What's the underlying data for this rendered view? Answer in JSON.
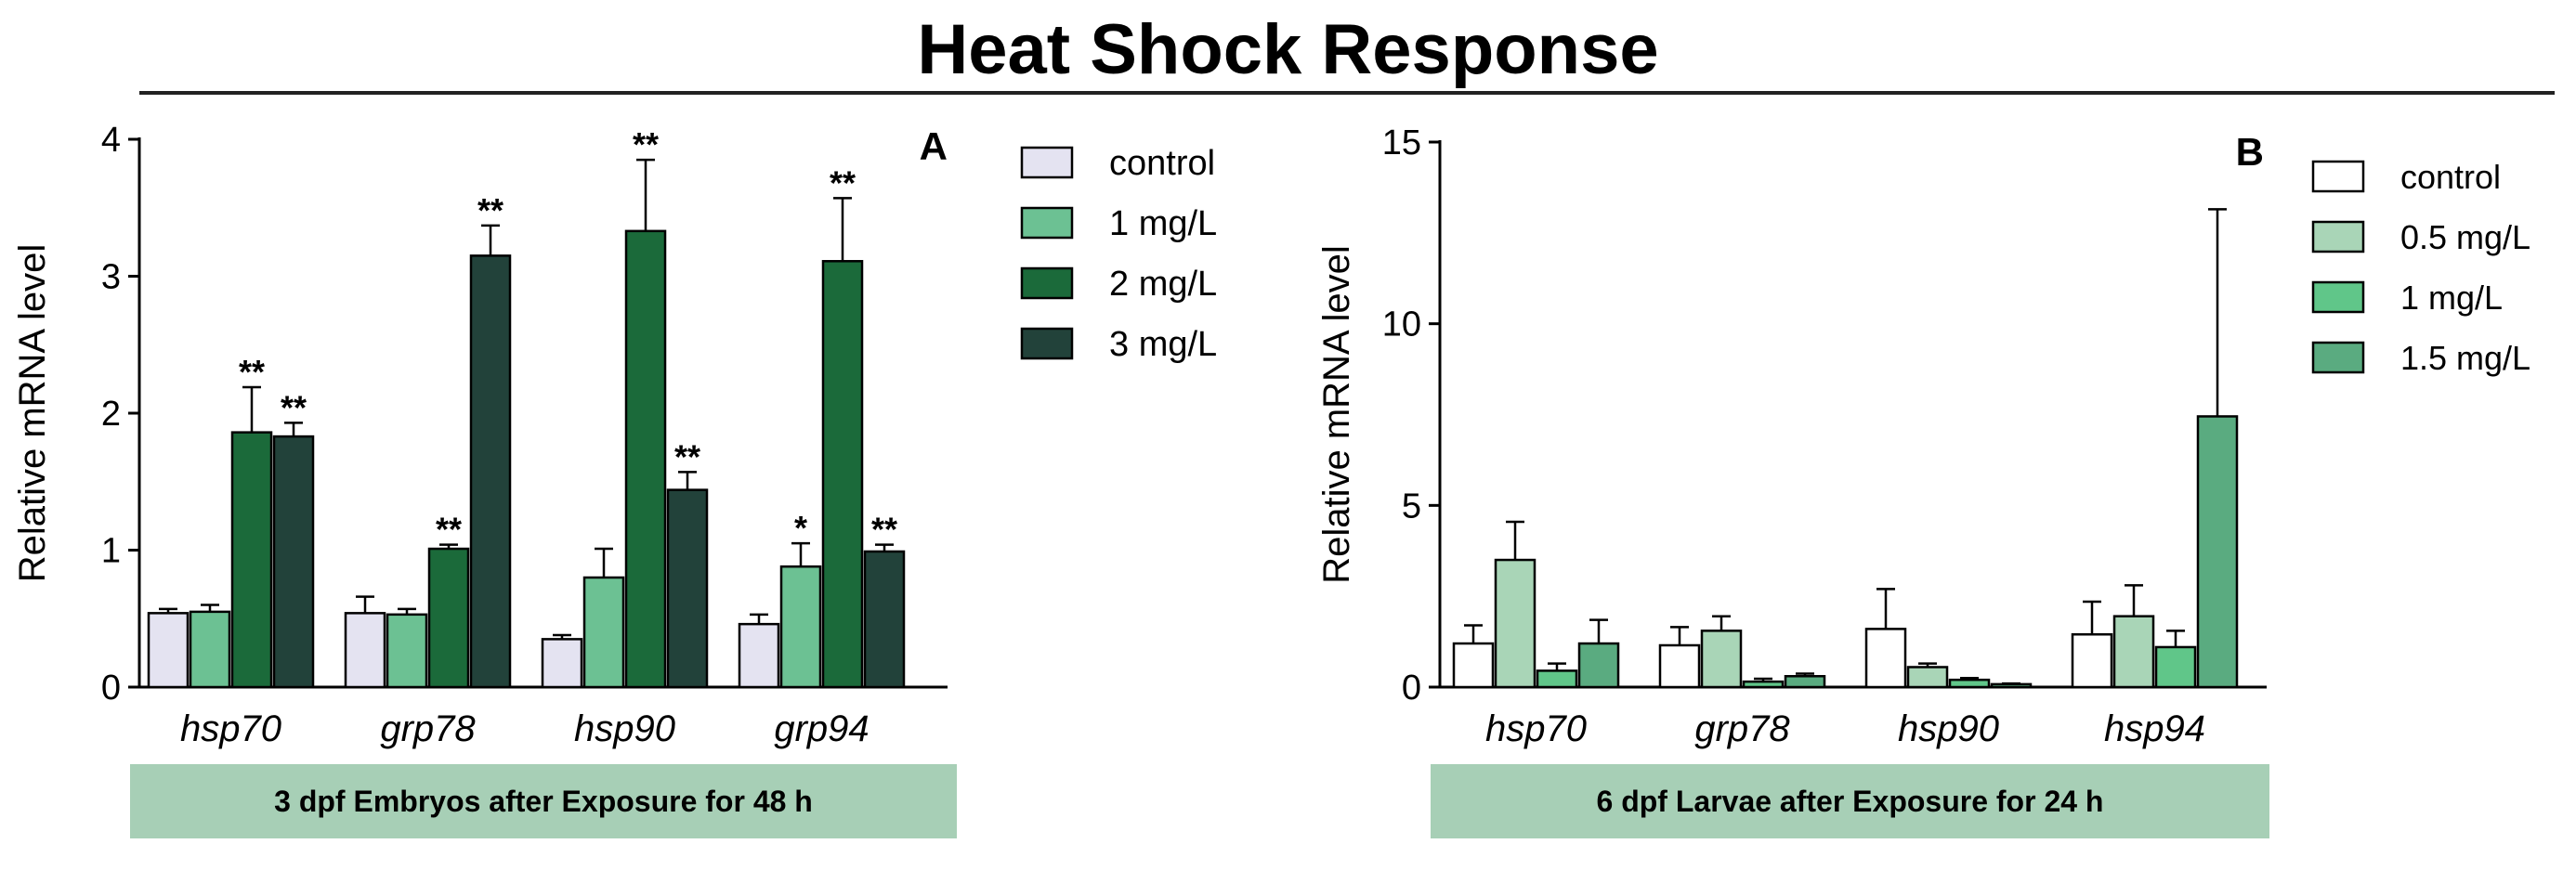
{
  "title": "Heat Shock Response",
  "chart_data": [
    {
      "type": "bar",
      "panel_label": "A",
      "ylabel": "Relative mRNA level",
      "ylim": [
        0,
        4
      ],
      "yticks": [
        0,
        1,
        2,
        3,
        4
      ],
      "categories": [
        "hsp70",
        "grp78",
        "hsp90",
        "grp94"
      ],
      "caption": "3 dpf  Embryos after Exposure for 48 h",
      "series": [
        {
          "name": "control",
          "color": "#e4e3f1",
          "values": [
            0.54,
            0.54,
            0.35,
            0.46
          ],
          "errors": [
            0.03,
            0.12,
            0.03,
            0.07
          ],
          "sig": [
            "",
            "",
            "",
            ""
          ]
        },
        {
          "name": "1 mg/L",
          "color": "#6cc193",
          "values": [
            0.55,
            0.53,
            0.8,
            0.88
          ],
          "errors": [
            0.05,
            0.04,
            0.21,
            0.17
          ],
          "sig": [
            "",
            "",
            "",
            "*"
          ]
        },
        {
          "name": "2 mg/L",
          "color": "#1b6a3a",
          "values": [
            1.86,
            1.01,
            3.33,
            3.11
          ],
          "errors": [
            0.33,
            0.03,
            0.52,
            0.46
          ],
          "sig": [
            "**",
            "**",
            "**",
            "**"
          ]
        },
        {
          "name": "3 mg/L",
          "color": "#22423a",
          "values": [
            1.83,
            3.15,
            1.44,
            0.99
          ],
          "errors": [
            0.1,
            0.22,
            0.13,
            0.05
          ],
          "sig": [
            "**",
            "**",
            "**",
            "**"
          ]
        }
      ]
    },
    {
      "type": "bar",
      "panel_label": "B",
      "ylabel": "Relative mRNA  level",
      "ylim": [
        0,
        15
      ],
      "yticks": [
        0,
        5,
        10,
        15
      ],
      "categories": [
        "hsp70",
        "grp78",
        "hsp90",
        "hsp94"
      ],
      "caption": "6 dpf  Larvae after Exposure for 24 h",
      "series": [
        {
          "name": "control",
          "color": "#ffffff",
          "values": [
            1.2,
            1.15,
            1.6,
            1.45
          ],
          "errors": [
            0.5,
            0.5,
            1.1,
            0.9
          ],
          "sig": [
            "",
            "",
            "",
            ""
          ]
        },
        {
          "name": "0.5 mg/L",
          "color": "#a9d5b7",
          "values": [
            3.5,
            1.55,
            0.55,
            1.95
          ],
          "errors": [
            1.05,
            0.4,
            0.1,
            0.85
          ],
          "sig": [
            "",
            "",
            "",
            ""
          ]
        },
        {
          "name": "1 mg/L",
          "color": "#60c689",
          "values": [
            0.45,
            0.15,
            0.2,
            1.1
          ],
          "errors": [
            0.2,
            0.08,
            0.05,
            0.45
          ],
          "sig": [
            "",
            "",
            "",
            ""
          ]
        },
        {
          "name": "1.5 mg/L",
          "color": "#5aab80",
          "values": [
            1.2,
            0.3,
            0.08,
            7.45
          ],
          "errors": [
            0.65,
            0.07,
            0.02,
            5.7
          ],
          "sig": [
            "",
            "",
            "",
            ""
          ]
        }
      ]
    }
  ]
}
